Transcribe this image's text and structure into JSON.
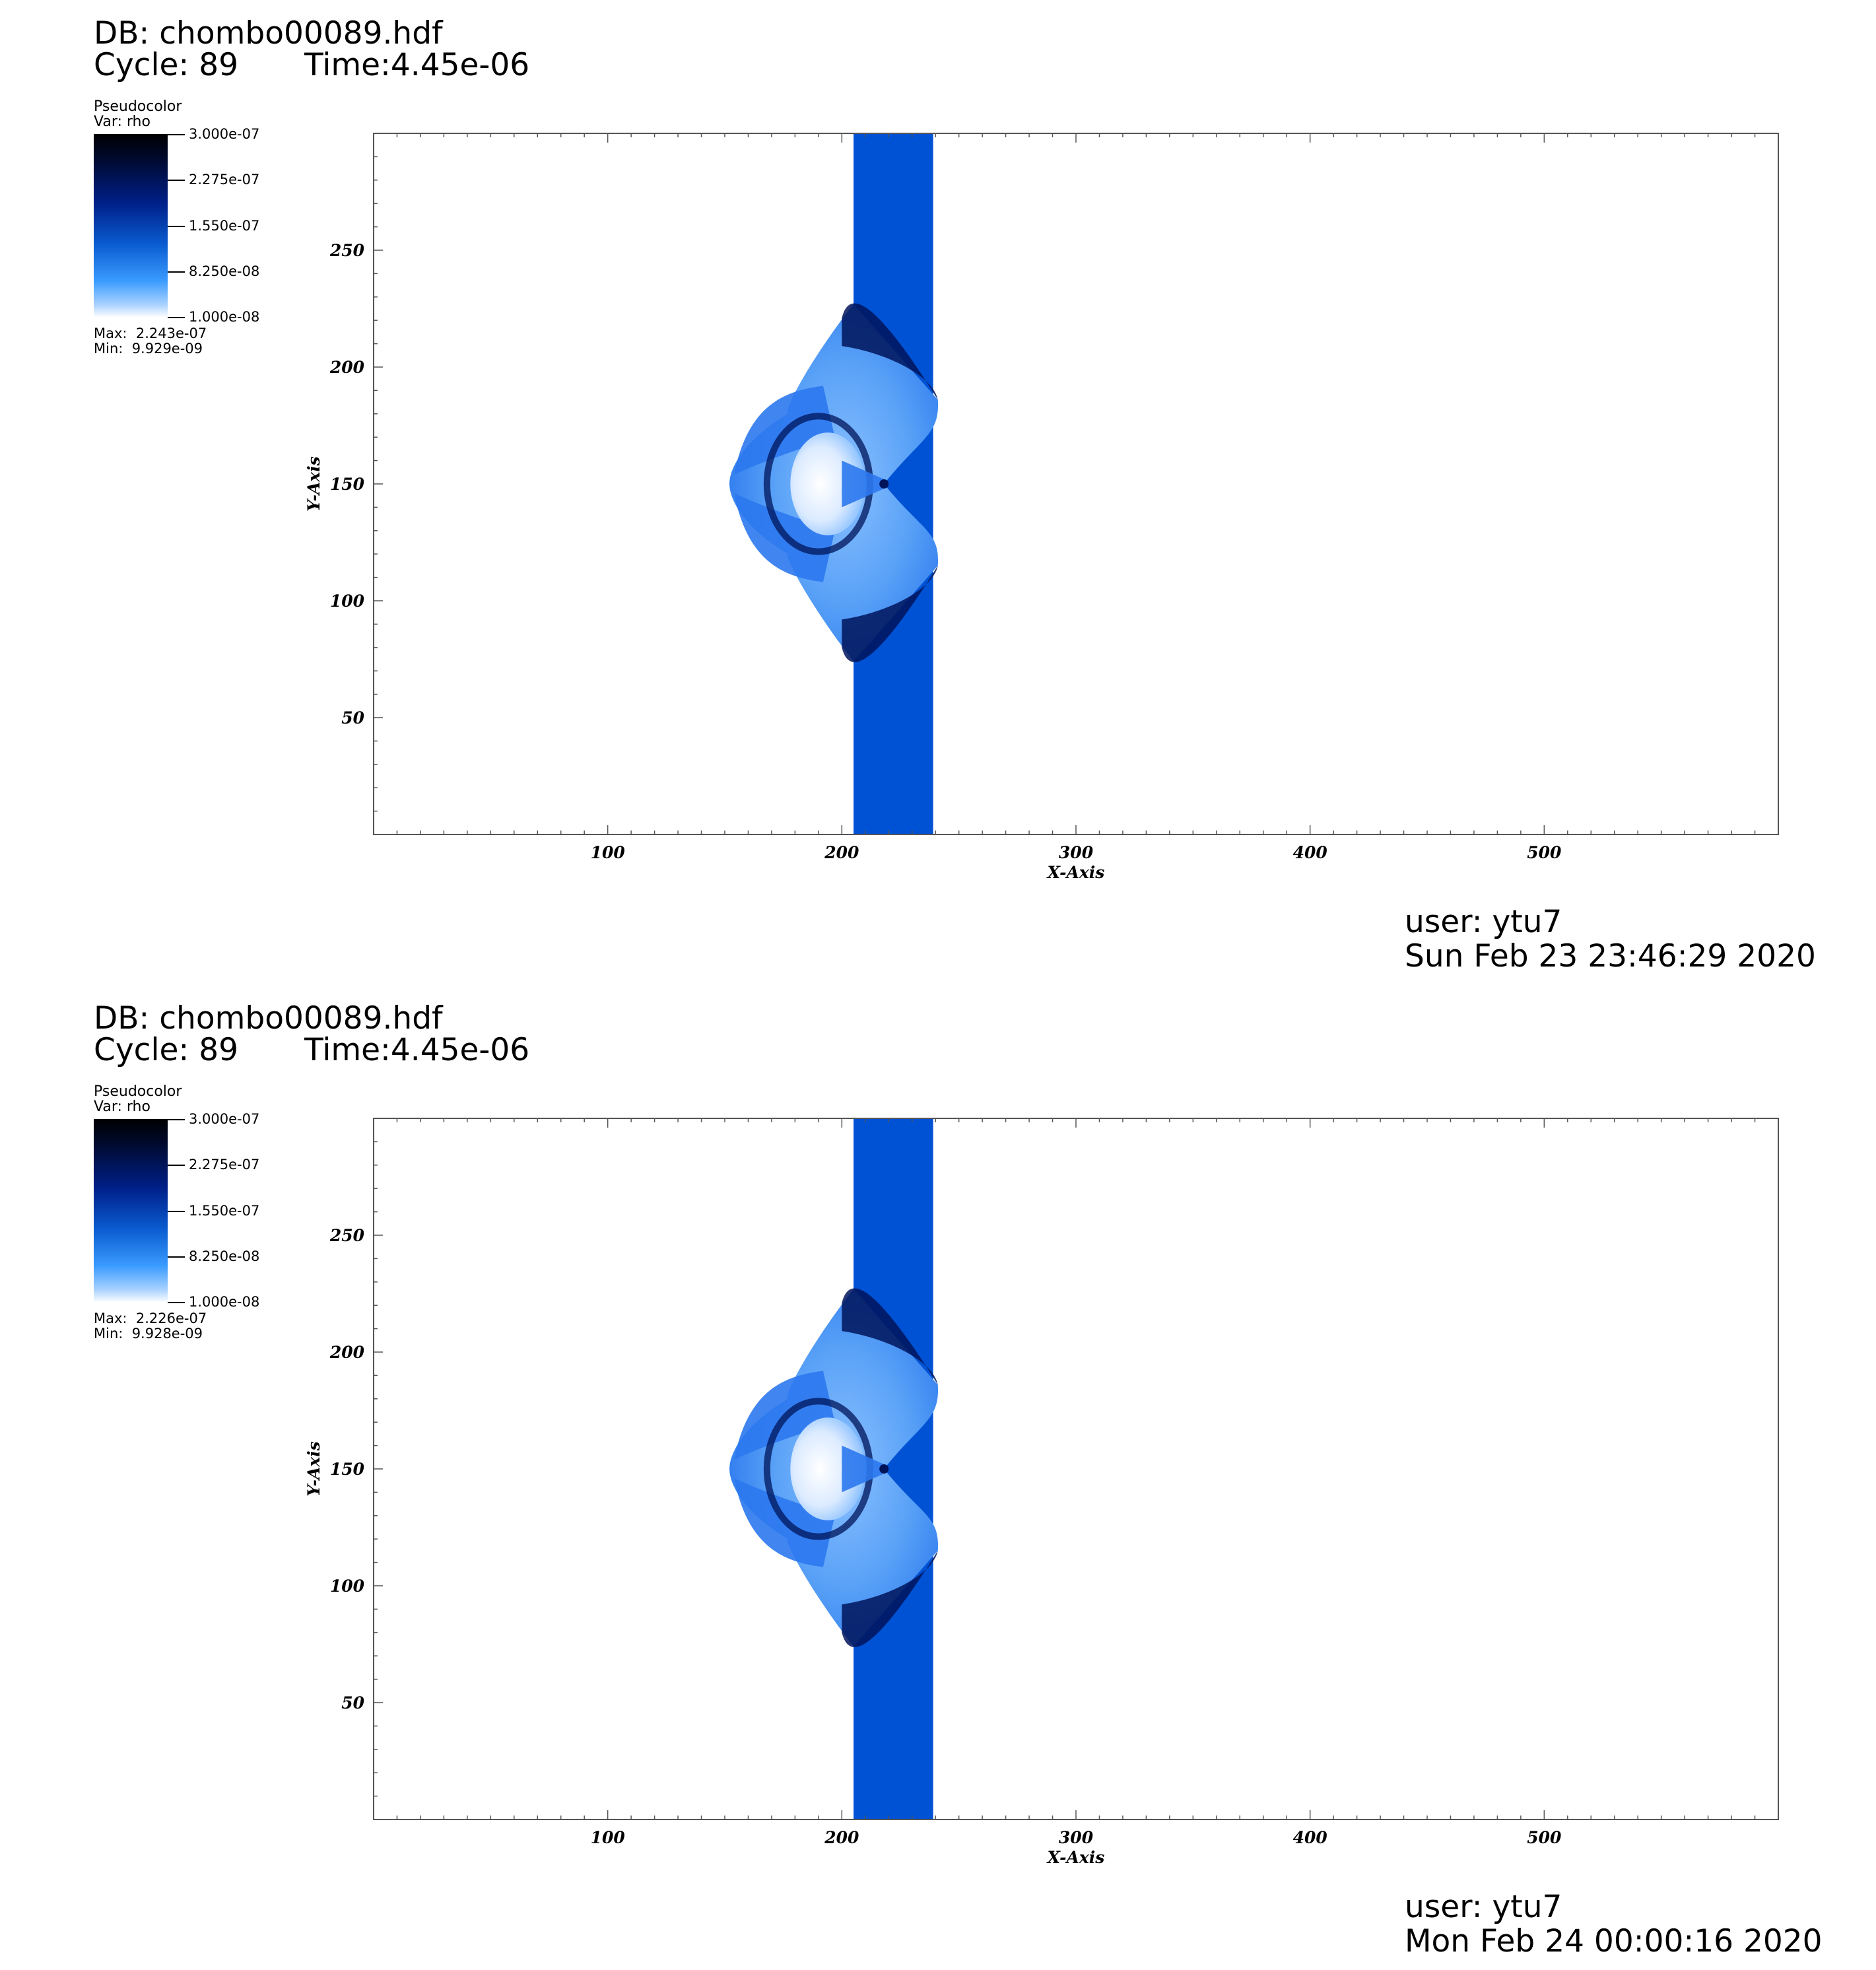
{
  "panels": [
    {
      "db": "DB: chombo00089.hdf",
      "cycle": "Cycle: 89",
      "time": "Time:4.45e-06",
      "legend": {
        "title": "Pseudocolor",
        "var": "Var: rho",
        "ticks": [
          "3.000e-07",
          "2.275e-07",
          "1.550e-07",
          "8.250e-08",
          "1.000e-08"
        ],
        "max": "Max:  2.243e-07",
        "min": "Min:  9.929e-09"
      },
      "user": "user: ytu7",
      "date": "Sun Feb 23 23:46:29 2020"
    },
    {
      "db": "DB: chombo00089.hdf",
      "cycle": "Cycle: 89",
      "time": "Time:4.45e-06",
      "legend": {
        "title": "Pseudocolor",
        "var": "Var: rho",
        "ticks": [
          "3.000e-07",
          "2.275e-07",
          "1.550e-07",
          "8.250e-08",
          "1.000e-08"
        ],
        "max": "Max:  2.226e-07",
        "min": "Min:  9.928e-09"
      },
      "user": "user: ytu7",
      "date": "Mon Feb 24 00:00:16 2020"
    }
  ],
  "chart_data": [
    {
      "type": "heatmap",
      "title": "",
      "xlabel": "X-Axis",
      "ylabel": "Y-Axis",
      "xlim": [
        0,
        600
      ],
      "ylim": [
        0,
        300
      ],
      "xticks": [
        100,
        200,
        300,
        400,
        500
      ],
      "yticks": [
        50,
        100,
        150,
        200,
        250
      ],
      "colorbar": {
        "min": 1e-08,
        "max": 3e-07,
        "data_min": 9.929e-09,
        "data_max": 2.243e-07
      },
      "colors": {
        "slab": "#0052d4",
        "dark": "#00145a",
        "mid": "#2b78ee",
        "light": "#8ac0ff",
        "pale": "#dcebff"
      },
      "features": {
        "slab_x": [
          205,
          239
        ],
        "bow_y": [
          70,
          231
        ],
        "bow_tip_x": 152,
        "center_y": 150
      }
    },
    {
      "type": "heatmap",
      "title": "",
      "xlabel": "X-Axis",
      "ylabel": "Y-Axis",
      "xlim": [
        0,
        600
      ],
      "ylim": [
        0,
        300
      ],
      "xticks": [
        100,
        200,
        300,
        400,
        500
      ],
      "yticks": [
        50,
        100,
        150,
        200,
        250
      ],
      "colorbar": {
        "min": 1e-08,
        "max": 3e-07,
        "data_min": 9.928e-09,
        "data_max": 2.226e-07
      },
      "colors": {
        "slab": "#0052d4",
        "dark": "#00145a",
        "mid": "#2b78ee",
        "light": "#8ac0ff",
        "pale": "#dcebff"
      },
      "features": {
        "slab_x": [
          205,
          239
        ],
        "bow_y": [
          70,
          231
        ],
        "bow_tip_x": 152,
        "center_y": 150
      }
    }
  ]
}
